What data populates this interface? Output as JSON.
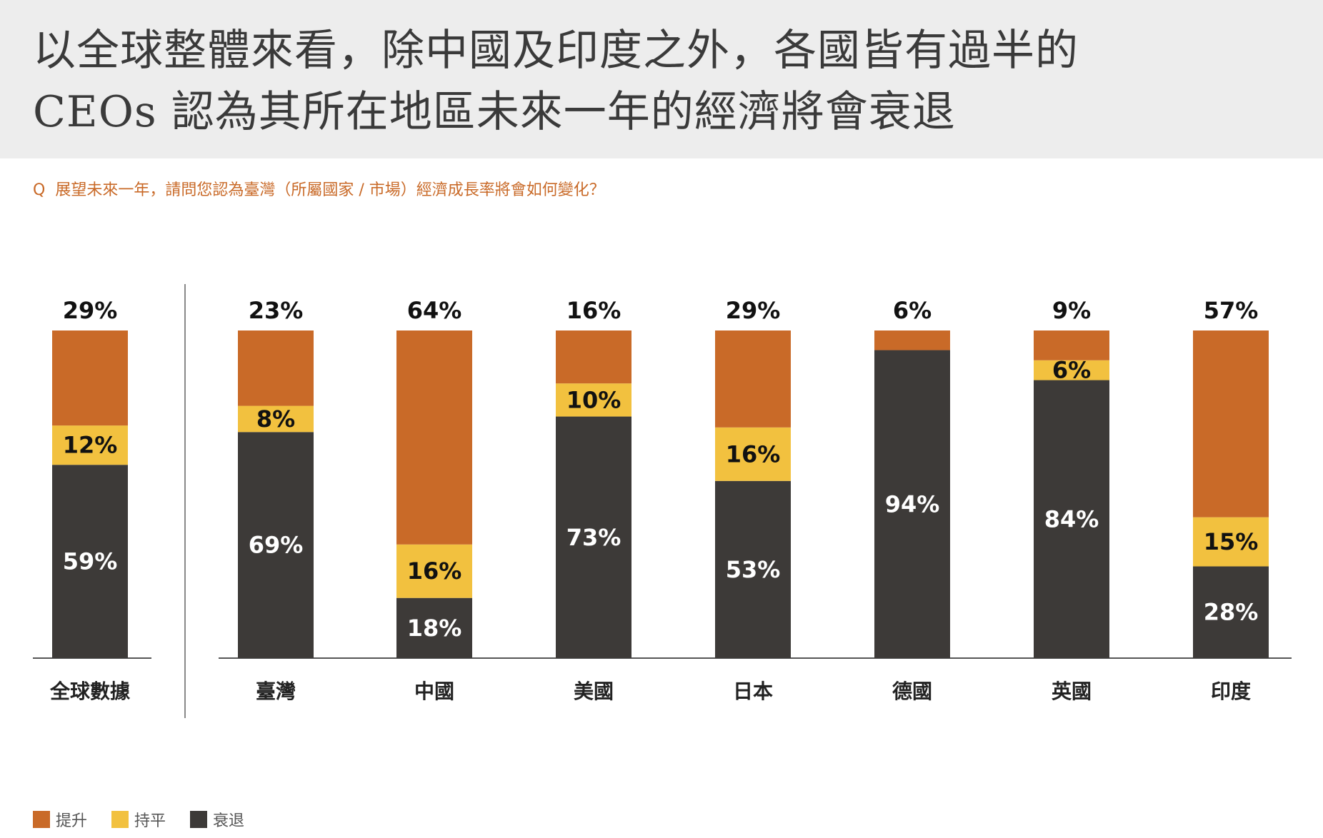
{
  "title_line1": "以全球整體來看，除中國及印度之外，各國皆有過半的",
  "title_line2": "CEOs 認為其所在地區未來一年的經濟將會衰退",
  "question_prefix": "Q",
  "question_text": "展望未來一年，請問您認為臺灣（所屬國家 / 市場）經濟成長率將會如何變化？",
  "colors": {
    "rise": "#c96a28",
    "flat": "#f2c13f",
    "decline": "#3d3a38"
  },
  "chart_data": {
    "type": "bar",
    "stacked": true,
    "normalized": true,
    "categories": [
      "全球數據",
      "臺灣",
      "中國",
      "美國",
      "日本",
      "德國",
      "英國",
      "印度"
    ],
    "series": [
      {
        "name": "提升",
        "values": [
          29,
          23,
          64,
          16,
          29,
          6,
          9,
          57
        ]
      },
      {
        "name": "持平",
        "values": [
          12,
          8,
          16,
          10,
          16,
          null,
          6,
          15
        ]
      },
      {
        "name": "衰退",
        "values": [
          59,
          69,
          18,
          73,
          53,
          94,
          84,
          28
        ]
      }
    ],
    "data_labels": {
      "top": [
        "29%",
        "23%",
        "64%",
        "16%",
        "29%",
        "6%",
        "9%",
        "57%"
      ],
      "flat": [
        "12%",
        "8%",
        "16%",
        "10%",
        "16%",
        "",
        "6%",
        "15%"
      ],
      "decline": [
        "59%",
        "69%",
        "18%",
        "73%",
        "53%",
        "94%",
        "84%",
        "28%"
      ]
    },
    "legend": {
      "position": "bottom-left"
    },
    "grid": false
  }
}
